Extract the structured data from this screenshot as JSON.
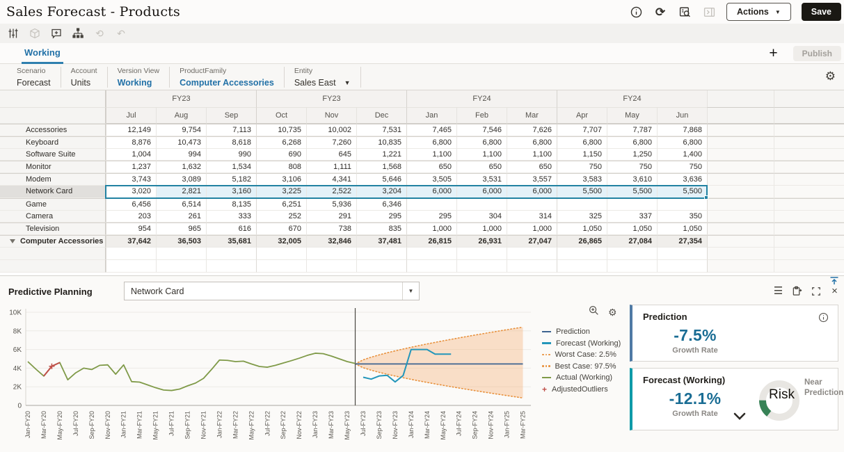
{
  "header": {
    "title": "Sales Forecast - Products",
    "actions_label": "Actions",
    "save_label": "Save"
  },
  "icons": {
    "refresh": "⟳",
    "gear": "⚙",
    "plus": "+",
    "caret_down": "▼",
    "history": "⟲",
    "undo": "↶",
    "menu": "☰",
    "close": "×",
    "combo_arrow": "▼"
  },
  "tabs": {
    "working": "Working",
    "publish": "Publish"
  },
  "pov": {
    "items": [
      {
        "label": "Scenario",
        "value": "Forecast",
        "accent": false,
        "dropdown": false
      },
      {
        "label": "Account",
        "value": "Units",
        "accent": false,
        "dropdown": false
      },
      {
        "label": "Version View",
        "value": "Working",
        "accent": true,
        "dropdown": false
      },
      {
        "label": "ProductFamily",
        "value": "Computer Accessories",
        "accent": true,
        "dropdown": false
      },
      {
        "label": "Entity",
        "value": "Sales East",
        "accent": false,
        "dropdown": true
      }
    ]
  },
  "grid": {
    "quarter_headers": [
      "FY23",
      "FY23",
      "FY24",
      "FY24"
    ],
    "month_headers": [
      "Jul",
      "Aug",
      "Sep",
      "Oct",
      "Nov",
      "Dec",
      "Jan",
      "Feb",
      "Mar",
      "Apr",
      "May",
      "Jun"
    ],
    "rows": [
      {
        "name": "Accessories",
        "type": "member",
        "values": [
          12149,
          9754,
          7113,
          10735,
          10002,
          7531,
          7465,
          7546,
          7626,
          7707,
          7787,
          7868
        ]
      },
      {
        "name": "Keyboard",
        "type": "member",
        "values": [
          8876,
          10473,
          8618,
          6268,
          7260,
          10835,
          6800,
          6800,
          6800,
          6800,
          6800,
          6800
        ]
      },
      {
        "name": "Software Suite",
        "type": "member",
        "values": [
          1004,
          994,
          990,
          690,
          645,
          1221,
          1100,
          1100,
          1100,
          1150,
          1250,
          1400
        ]
      },
      {
        "name": "Monitor",
        "type": "member",
        "values": [
          1237,
          1632,
          1534,
          808,
          1111,
          1568,
          650,
          650,
          650,
          750,
          750,
          750
        ]
      },
      {
        "name": "Modem",
        "type": "member",
        "values": [
          3743,
          3089,
          5182,
          3106,
          4341,
          5646,
          3505,
          3531,
          3557,
          3583,
          3610,
          3636
        ]
      },
      {
        "name": "Network Card",
        "type": "member",
        "selected": true,
        "values": [
          3020,
          2821,
          3160,
          3225,
          2522,
          3204,
          6000,
          6000,
          6000,
          5500,
          5500,
          5500
        ]
      },
      {
        "name": "Game",
        "type": "member",
        "values": [
          6456,
          6514,
          8135,
          6251,
          5936,
          6346,
          null,
          null,
          null,
          null,
          null,
          null
        ]
      },
      {
        "name": "Camera",
        "type": "member",
        "values": [
          203,
          261,
          333,
          252,
          291,
          295,
          295,
          304,
          314,
          325,
          337,
          350
        ]
      },
      {
        "name": "Television",
        "type": "member",
        "values": [
          954,
          965,
          616,
          670,
          738,
          835,
          1000,
          1000,
          1000,
          1050,
          1050,
          1050
        ]
      },
      {
        "name": "Computer Accessories",
        "type": "total",
        "values": [
          37642,
          36503,
          35681,
          32005,
          32846,
          37481,
          26815,
          26931,
          27047,
          26865,
          27084,
          27354
        ]
      }
    ]
  },
  "panel": {
    "title": "Predictive Planning",
    "member": "Network Card"
  },
  "chart_data": {
    "type": "line",
    "title": "",
    "ylim": [
      0,
      10000
    ],
    "y_tick_labels": [
      "0",
      "2K",
      "4K",
      "6K",
      "8K",
      "10K"
    ],
    "x_tick_labels": [
      "Jan-FY20",
      "Mar-FY20",
      "May-FY20",
      "Jul-FY20",
      "Sep-FY20",
      "Nov-FY20",
      "Jan-FY21",
      "Mar-FY21",
      "May-FY21",
      "Jul-FY21",
      "Sep-FY21",
      "Nov-FY21",
      "Jan-FY22",
      "Mar-FY22",
      "May-FY22",
      "Jul-FY22",
      "Sep-FY22",
      "Nov-FY22",
      "Jan-FY23",
      "Mar-FY23",
      "May-FY23",
      "Jul-FY23",
      "Sep-FY23",
      "Nov-FY23",
      "Jan-FY24",
      "Mar-FY24",
      "May-FY24",
      "Jul-FY24",
      "Sep-FY24",
      "Nov-FY24",
      "Jan-FY25",
      "Mar-FY25"
    ],
    "months_per_tick": 2,
    "total_months": 64,
    "divider_index": 41,
    "series": [
      {
        "name": "Actual (Working)",
        "color": "#7f9a48",
        "start_index": 0,
        "values": [
          4700,
          3900,
          3150,
          4200,
          4600,
          2750,
          3500,
          4000,
          3850,
          4300,
          4350,
          3350,
          4350,
          2550,
          2500,
          2200,
          1900,
          1650,
          1600,
          1750,
          2100,
          2400,
          2900,
          3850,
          4870,
          4830,
          4700,
          4750,
          4450,
          4180,
          4100,
          4300,
          4550,
          4800,
          5070,
          5370,
          5600,
          5550,
          5300,
          5000,
          4700,
          4500
        ]
      },
      {
        "name": "Forecast (Working)",
        "color": "#2396ba",
        "start_index": 42,
        "values": [
          3020,
          2821,
          3160,
          3225,
          2522,
          3204,
          6000,
          6000,
          6000,
          5500,
          5500,
          5500
        ]
      },
      {
        "name": "Prediction",
        "color": "#3d6390",
        "start_index": 41,
        "end_index": 62,
        "flat_value": 4450
      }
    ],
    "confidence_band": {
      "color": "#f5a65f",
      "edge_color": "#e8913d",
      "start_index": 41,
      "end_index": 62,
      "start_value": 4450,
      "best_case_end_value": 8400,
      "worst_case_end_value": 800,
      "best_label": "Best Case: 97.5%",
      "worst_label": "Worst Case: 2.5%"
    },
    "adjusted_outliers": {
      "name": "AdjustedOutliers",
      "color": "#c0504a",
      "segment_indices": [
        2,
        3,
        4
      ],
      "marker_indices": [
        3
      ]
    },
    "legend": [
      {
        "label": "Prediction",
        "swatch": "line",
        "thickness": 2,
        "color": "#3d6390"
      },
      {
        "label": "Forecast (Working)",
        "swatch": "line",
        "thickness": 3,
        "color": "#2396ba"
      },
      {
        "label": "Worst Case: 2.5%",
        "swatch": "dotted",
        "color": "#e8913d"
      },
      {
        "label": "Best Case: 97.5%",
        "swatch": "dotted",
        "color": "#e8913d"
      },
      {
        "label": "Actual (Working)",
        "swatch": "line",
        "thickness": 2,
        "color": "#7f9a48"
      },
      {
        "label": "AdjustedOutliers",
        "swatch": "cross",
        "color": "#c0504a"
      }
    ]
  },
  "cards": {
    "prediction": {
      "title": "Prediction",
      "value": "-7.5%",
      "caption": "Growth Rate"
    },
    "forecast": {
      "title": "Forecast (Working)",
      "value": "-12.1%",
      "caption": "Growth Rate",
      "gauge_label": "Risk",
      "gauge_caption": "Near Prediction",
      "gauge_color": "#378256"
    }
  },
  "colors": {
    "accent_blue": "#2271a7",
    "selection": "#2282a2",
    "value_teal": "#1a6d94"
  }
}
